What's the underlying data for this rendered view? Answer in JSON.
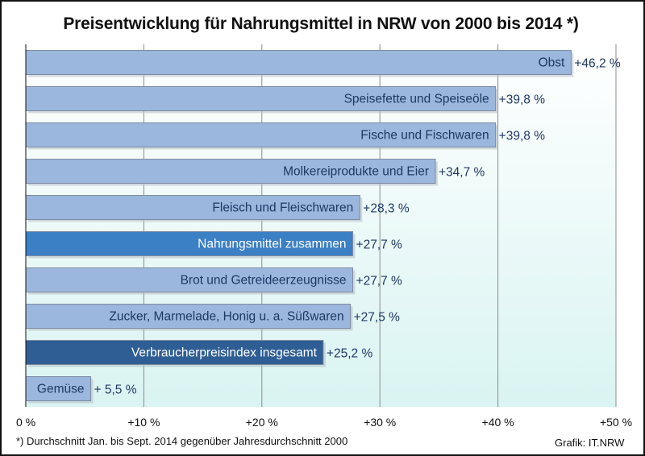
{
  "chart_data": {
    "type": "bar",
    "orientation": "horizontal",
    "title": "Preisentwicklung für Nahrungsmittel in NRW von 2000 bis 2014 *)",
    "categories": [
      "Obst",
      "Speisefette und Speiseöle",
      "Fische und Fischwaren",
      "Molkereiprodukte  und Eier",
      "Fleisch und Fleischwaren",
      "Nahrungsmittel zusammen",
      "Brot und Getreideerzeugnisse",
      "Zucker, Marmelade, Honig u. a. Süßwaren",
      "Verbraucherpreisindex insgesamt",
      "Gemüse"
    ],
    "values": [
      46.2,
      39.8,
      39.8,
      34.7,
      28.3,
      27.7,
      27.7,
      27.5,
      25.2,
      5.5
    ],
    "value_labels": [
      "+46,2 %",
      "+39,8 %",
      "+39,8 %",
      "+34,7 %",
      "+28,3 %",
      "+27,7 %",
      "+27,7 %",
      "+27,5 %",
      "+25,2 %",
      "+ 5,5 %"
    ],
    "highlight": [
      "normal",
      "normal",
      "normal",
      "normal",
      "normal",
      "medium",
      "normal",
      "normal",
      "dark",
      "normal"
    ],
    "xlim": [
      0,
      50
    ],
    "xticks": [
      0,
      10,
      20,
      30,
      40,
      50
    ],
    "xtick_labels": [
      "0 %",
      "+10 %",
      "+20 %",
      "+30 %",
      "+40 %",
      "+50 %"
    ],
    "grid": "vertical",
    "colors": {
      "bar_normal": "#9bb7dd",
      "bar_medium": "#3b7fc4",
      "bar_dark": "#2f5e94",
      "bar_edge": "#7e8aa0",
      "label_on_light": "#1f3864",
      "label_on_dark": "#ffffff",
      "value_label": "#1f3864",
      "bg_top": "#ffffff",
      "bg_bottom": "#d9f4f2"
    },
    "footnote": "*) Durchschnitt Jan. bis Sept. 2014 gegenüber Jahresdurchschnitt 2000",
    "credit": "Grafik: IT.NRW"
  }
}
